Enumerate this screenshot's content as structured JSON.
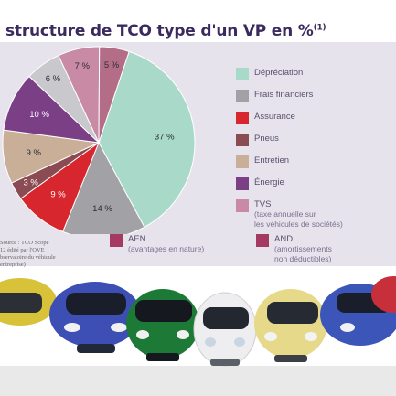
{
  "title": "structure de TCO type d'un VP en %",
  "title_note": "(1)",
  "chart_data": {
    "type": "pie",
    "slices": [
      {
        "name": "Dépréciation",
        "value": 37,
        "color": "#a9d9c9"
      },
      {
        "name": "Frais financiers",
        "value": 14,
        "color": "#a2a2a6"
      },
      {
        "name": "Assurance",
        "value": 9,
        "color": "#d7262d"
      },
      {
        "name": "Pneus",
        "value": 3,
        "color": "#8a4b52"
      },
      {
        "name": "Entretien",
        "value": 9,
        "color": "#c9ae98"
      },
      {
        "name": "Énergie",
        "value": 10,
        "color": "#7b3f86"
      },
      {
        "name": "TVS",
        "value": 6,
        "color": "#c9c9cd"
      },
      {
        "name": "AEN",
        "value": 7,
        "color": "#c98aa6"
      },
      {
        "name": "AND",
        "value": 5,
        "color": "#b36d86"
      }
    ],
    "labels": [
      "37 %",
      "14 %",
      "9 %",
      "3 %",
      "9 %",
      "10 %",
      "6 %",
      "7 %",
      "5 %"
    ]
  },
  "legend": [
    {
      "label": "Dépréciation",
      "color": "#a9d9c9"
    },
    {
      "label": "Frais financiers",
      "color": "#a2a2a6"
    },
    {
      "label": "Assurance",
      "color": "#d7262d"
    },
    {
      "label": "Pneus",
      "color": "#8a4b52"
    },
    {
      "label": "Entretien",
      "color": "#c9ae98"
    },
    {
      "label": "Énergie",
      "color": "#7b3f86"
    },
    {
      "label": "TVS",
      "sub1": "(taxe annuelle sur",
      "sub2": "les véhicules de sociétés)",
      "color": "#c98aa6"
    }
  ],
  "legend_bottom": [
    {
      "label": "AEN",
      "sub1": "(avantages en nature)",
      "color": "#a43a62"
    },
    {
      "label": "AND",
      "sub1": "(amortissements",
      "sub2": "non déductibles)",
      "color": "#a43a62"
    }
  ],
  "source": [
    "Source : TCO Scope",
    "12 édité par l'OVE",
    "bservatoire du véhicule",
    "entreprise)"
  ]
}
